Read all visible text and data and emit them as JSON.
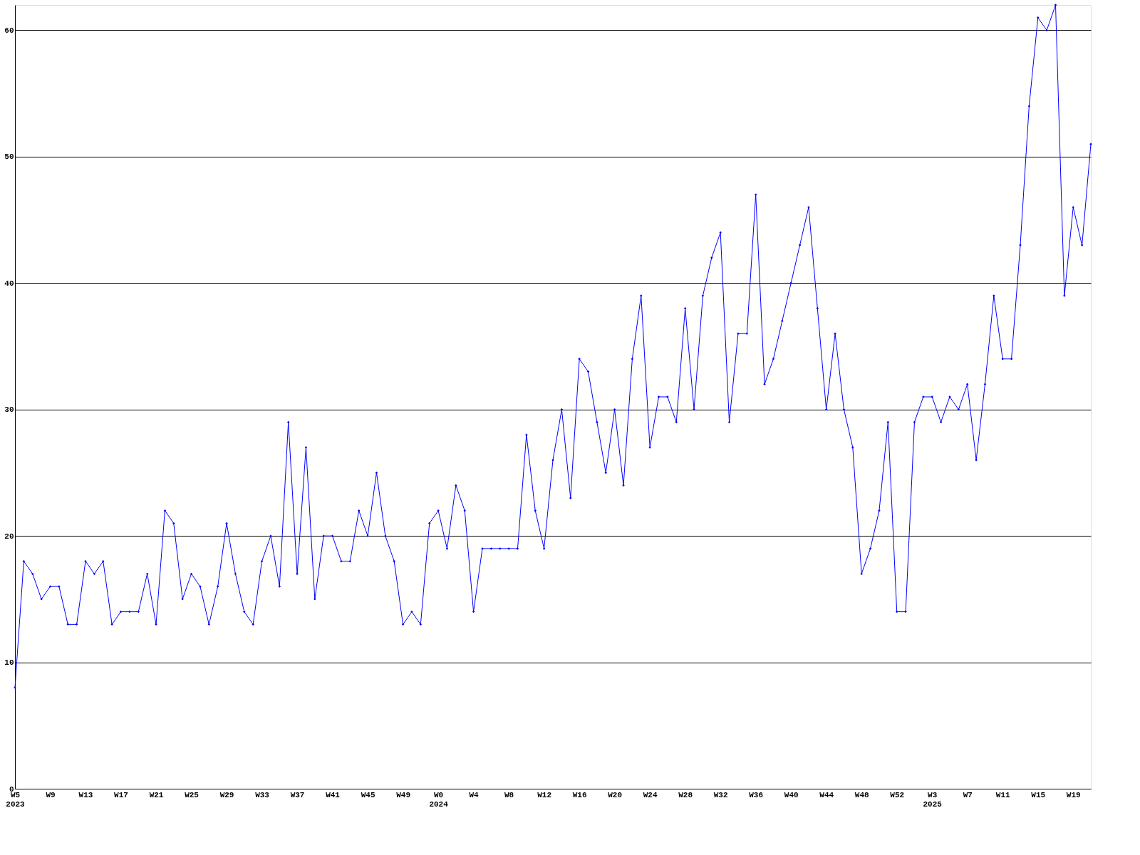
{
  "chart_data": {
    "type": "line",
    "categories": [
      "W5\n2023",
      null,
      null,
      null,
      "W9",
      null,
      null,
      null,
      "W13",
      null,
      null,
      null,
      "W17",
      null,
      null,
      null,
      "W21",
      null,
      null,
      null,
      "W25",
      null,
      null,
      null,
      "W29",
      null,
      null,
      null,
      "W33",
      null,
      null,
      null,
      "W37",
      null,
      null,
      null,
      "W41",
      null,
      null,
      null,
      "W45",
      null,
      null,
      null,
      "W49",
      null,
      null,
      null,
      "W0\n2024",
      null,
      null,
      null,
      "W4",
      null,
      null,
      null,
      "W8",
      null,
      null,
      null,
      "W12",
      null,
      null,
      null,
      "W16",
      null,
      null,
      null,
      "W20",
      null,
      null,
      null,
      "W24",
      null,
      null,
      null,
      "W28",
      null,
      null,
      null,
      "W32",
      null,
      null,
      null,
      "W36",
      null,
      null,
      null,
      "W40",
      null,
      null,
      null,
      "W44",
      null,
      null,
      null,
      "W48",
      null,
      null,
      null,
      "W52",
      null,
      null,
      null,
      "W3\n2025",
      null,
      null,
      null,
      "W7",
      null,
      null,
      null,
      "W11",
      null,
      null,
      null,
      "W15",
      null,
      null,
      null,
      "W19",
      null,
      null
    ],
    "series": [
      {
        "color": "#0000ff",
        "values": [
          8,
          18,
          17,
          15,
          16,
          16,
          13,
          13,
          18,
          17,
          18,
          13,
          14,
          14,
          14,
          17,
          13,
          22,
          21,
          15,
          17,
          16,
          13,
          16,
          21,
          17,
          14,
          13,
          18,
          20,
          16,
          29,
          17,
          27,
          15,
          20,
          20,
          18,
          18,
          22,
          20,
          25,
          20,
          18,
          13,
          14,
          13,
          21,
          22,
          19,
          24,
          22,
          14,
          19,
          19,
          19,
          19,
          19,
          28,
          22,
          19,
          26,
          30,
          23,
          34,
          33,
          29,
          25,
          30,
          24,
          34,
          39,
          27,
          31,
          31,
          29,
          38,
          30,
          39,
          42,
          44,
          29,
          36,
          36,
          47,
          32,
          34,
          37,
          40,
          43,
          46,
          38,
          30,
          36,
          30,
          27,
          17,
          19,
          22,
          29,
          14,
          14,
          29,
          31,
          31,
          29,
          31,
          30,
          32,
          26,
          32,
          39,
          34,
          34,
          43,
          54,
          61,
          60,
          62,
          39,
          46,
          43,
          51
        ]
      }
    ],
    "ylim": [
      0,
      62
    ],
    "yticks": [
      0,
      10,
      20,
      30,
      40,
      50,
      60
    ],
    "grid": "y",
    "marker": "diamond",
    "line_style": "solid"
  }
}
